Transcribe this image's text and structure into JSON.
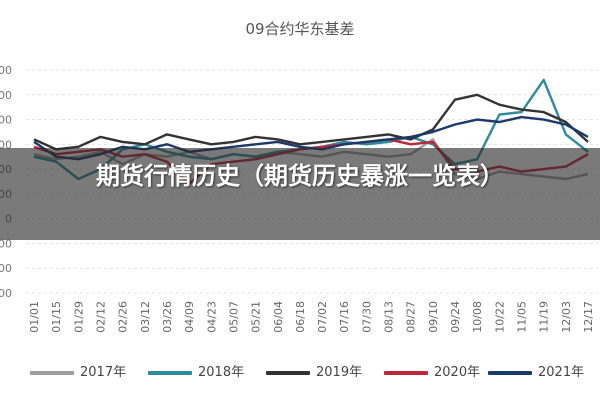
{
  "overlay": {
    "banner_text": "期货行情历史（期货历史暴涨一览表）"
  },
  "chart_data": {
    "type": "line",
    "title": "09合约华东基差",
    "xlabel": "",
    "ylabel": "",
    "grid": true,
    "legend_position": "bottom",
    "ytick_labels": [
      "00",
      "00",
      "00",
      "00",
      "00",
      "00",
      "0",
      "00",
      "00",
      "00"
    ],
    "categories": [
      "01/01",
      "01/15",
      "01/29",
      "02/12",
      "02/26",
      "03/12",
      "03/26",
      "04/09",
      "04/23",
      "05/07",
      "05/21",
      "06/04",
      "06/18",
      "07/02",
      "07/16",
      "07/30",
      "08/13",
      "08/27",
      "09/10",
      "09/24",
      "10/08",
      "10/22",
      "11/05",
      "11/19",
      "12/03",
      "12/17"
    ],
    "series": [
      {
        "name": "2017年",
        "color": "#9e9e9e",
        "values": [
          5.6,
          5.4,
          5.5,
          5.7,
          5.2,
          5.6,
          5.5,
          5.7,
          5.4,
          5.6,
          5.5,
          5.7,
          5.6,
          5.5,
          5.7,
          5.6,
          5.5,
          5.6,
          6.2,
          4.8,
          4.6,
          4.9,
          4.8,
          4.7,
          4.6,
          4.8
        ]
      },
      {
        "name": "2018年",
        "color": "#2e8b9a",
        "values": [
          5.5,
          5.3,
          4.6,
          5.0,
          5.8,
          6.0,
          5.7,
          5.5,
          5.4,
          5.6,
          5.5,
          5.7,
          5.8,
          5.9,
          6.1,
          6.0,
          6.1,
          6.3,
          6.0,
          5.2,
          5.4,
          7.2,
          7.3,
          8.6,
          6.4,
          5.7
        ]
      },
      {
        "name": "2019年",
        "color": "#333333",
        "values": [
          6.2,
          5.8,
          5.9,
          6.3,
          6.1,
          6.0,
          6.4,
          6.2,
          6.0,
          6.1,
          6.3,
          6.2,
          6.0,
          6.1,
          6.2,
          6.3,
          6.4,
          6.2,
          6.6,
          7.8,
          8.0,
          7.6,
          7.4,
          7.3,
          6.9,
          6.1
        ]
      },
      {
        "name": "2020年",
        "color": "#c0263a",
        "values": [
          5.9,
          5.6,
          5.7,
          5.8,
          5.5,
          5.6,
          5.3,
          4.4,
          5.2,
          5.3,
          5.4,
          5.6,
          5.8,
          5.9,
          6.0,
          6.1,
          6.2,
          6.0,
          6.1,
          5.0,
          4.9,
          5.1,
          4.9,
          5.0,
          5.1,
          5.6
        ]
      },
      {
        "name": "2021年",
        "color": "#1b3a6b",
        "values": [
          6.1,
          5.5,
          5.4,
          5.6,
          5.9,
          5.8,
          6.0,
          5.7,
          5.8,
          5.9,
          6.0,
          6.1,
          5.9,
          5.8,
          6.0,
          6.1,
          6.2,
          6.3,
          6.5,
          6.8,
          7.0,
          6.9,
          7.1,
          7.0,
          6.8,
          6.3
        ]
      }
    ]
  }
}
